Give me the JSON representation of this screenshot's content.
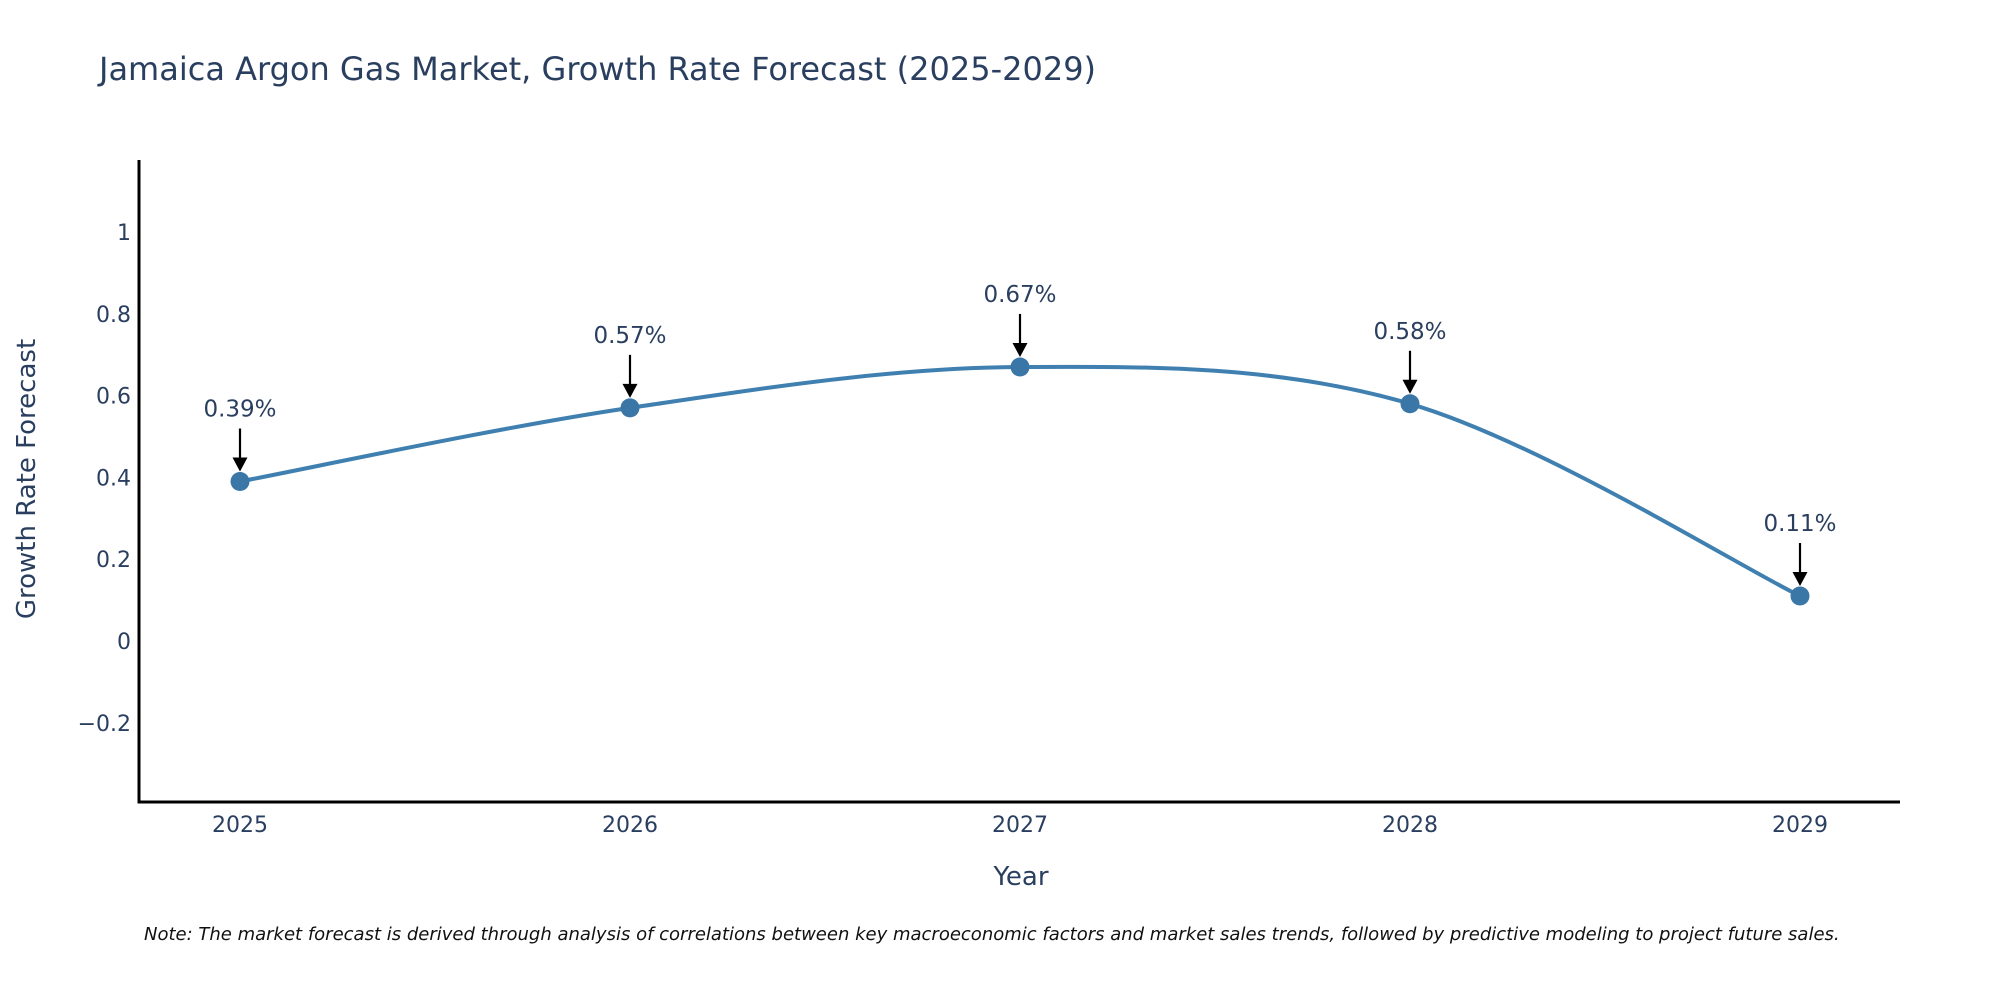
{
  "chart_data": {
    "type": "line",
    "title": "Jamaica Argon Gas Market, Growth Rate Forecast (2025-2029)",
    "xlabel": "Year",
    "ylabel": "Growth Rate Forecast",
    "categories": [
      "2025",
      "2026",
      "2027",
      "2028",
      "2029"
    ],
    "values": [
      0.39,
      0.57,
      0.67,
      0.58,
      0.11
    ],
    "data_labels": [
      "0.39%",
      "0.57%",
      "0.67%",
      "0.58%",
      "0.11%"
    ],
    "yticks": [
      -0.2,
      0,
      0.2,
      0.4,
      0.6,
      0.8,
      1
    ],
    "ytick_labels": [
      "−0.2",
      "0",
      "0.2",
      "0.4",
      "0.6",
      "0.8",
      "1"
    ],
    "ylim": [
      -0.4,
      1.17
    ],
    "grid": false,
    "line_shape": "spline",
    "series_color": "#4080b0",
    "marker_color": "#3a76a6",
    "note": "Note: The market forecast is derived through analysis of correlations between key macroeconomic factors and market sales trends, followed by predictive modeling to project future sales."
  }
}
